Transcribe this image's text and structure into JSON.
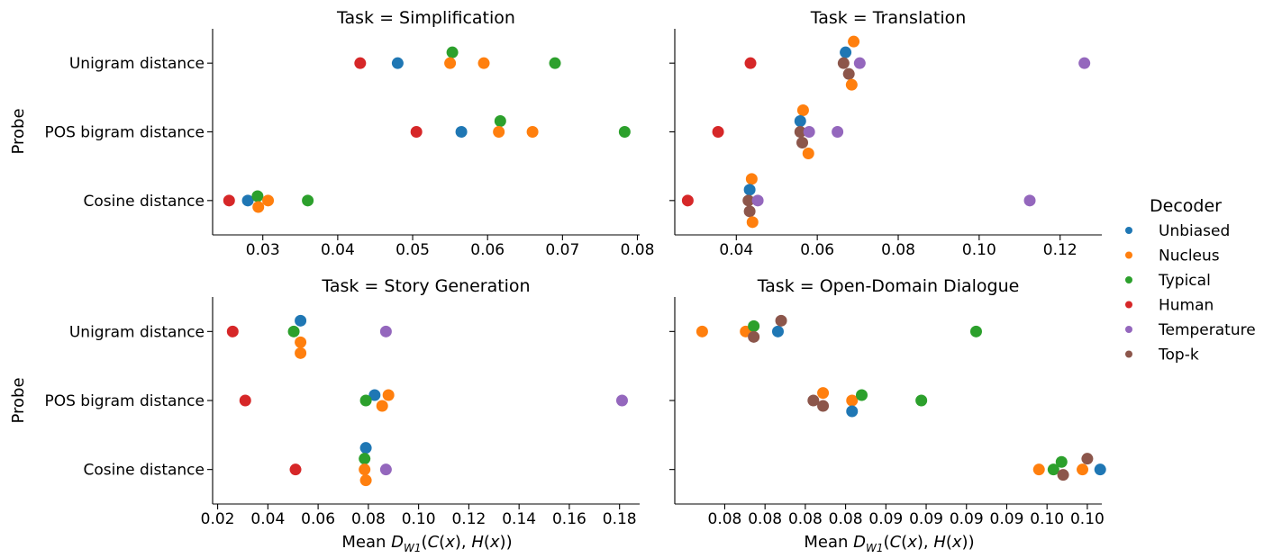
{
  "figure": {
    "y_axis_label": "Probe",
    "legend_title": "Decoder"
  },
  "decoders": [
    {
      "name": "Unbiased",
      "color": "#1f77b4"
    },
    {
      "name": "Nucleus",
      "color": "#ff7f0e"
    },
    {
      "name": "Typical",
      "color": "#2ca02c"
    },
    {
      "name": "Human",
      "color": "#d62728"
    },
    {
      "name": "Temperature",
      "color": "#9467bd"
    },
    {
      "name": "Top-k",
      "color": "#8c564b"
    }
  ],
  "chart_data": [
    {
      "type": "scatter",
      "title": "Task = Simplification",
      "xlabel": "",
      "ylabel": "Probe",
      "categories": [
        "Unigram distance",
        "POS bigram distance",
        "Cosine distance"
      ],
      "x_ticks": [
        0.03,
        0.04,
        0.05,
        0.06,
        0.07,
        0.08
      ],
      "x_tick_labels": [
        "0.03",
        "0.04",
        "0.05",
        "0.06",
        "0.07",
        "0.08"
      ],
      "xlim": [
        0.0233,
        0.0803
      ],
      "points": [
        {
          "decoder": "Human",
          "category": 0,
          "x": 0.043,
          "offset": 0
        },
        {
          "decoder": "Unbiased",
          "category": 0,
          "x": 0.048,
          "offset": 0
        },
        {
          "decoder": "Typical",
          "category": 0,
          "x": 0.0553,
          "offset": -1
        },
        {
          "decoder": "Nucleus",
          "category": 0,
          "x": 0.055,
          "offset": 0
        },
        {
          "decoder": "Nucleus",
          "category": 0,
          "x": 0.0595,
          "offset": 0
        },
        {
          "decoder": "Typical",
          "category": 0,
          "x": 0.069,
          "offset": 0
        },
        {
          "decoder": "Human",
          "category": 1,
          "x": 0.0505,
          "offset": 0
        },
        {
          "decoder": "Unbiased",
          "category": 1,
          "x": 0.0565,
          "offset": 0
        },
        {
          "decoder": "Typical",
          "category": 1,
          "x": 0.0617,
          "offset": -1
        },
        {
          "decoder": "Nucleus",
          "category": 1,
          "x": 0.0615,
          "offset": 0
        },
        {
          "decoder": "Nucleus",
          "category": 1,
          "x": 0.066,
          "offset": 0
        },
        {
          "decoder": "Typical",
          "category": 1,
          "x": 0.0783,
          "offset": 0
        },
        {
          "decoder": "Human",
          "category": 2,
          "x": 0.0255,
          "offset": 0
        },
        {
          "decoder": "Unbiased",
          "category": 2,
          "x": 0.028,
          "offset": 0
        },
        {
          "decoder": "Typical",
          "category": 2,
          "x": 0.0293,
          "offset": -0.4
        },
        {
          "decoder": "Nucleus",
          "category": 2,
          "x": 0.0307,
          "offset": 0
        },
        {
          "decoder": "Nucleus",
          "category": 2,
          "x": 0.0294,
          "offset": 0.6
        },
        {
          "decoder": "Typical",
          "category": 2,
          "x": 0.036,
          "offset": 0
        }
      ]
    },
    {
      "type": "scatter",
      "title": "Task = Translation",
      "xlabel": "",
      "ylabel": "",
      "categories": [
        "Unigram distance",
        "POS bigram distance",
        "Cosine distance"
      ],
      "x_ticks": [
        0.04,
        0.06,
        0.08,
        0.1,
        0.12
      ],
      "x_tick_labels": [
        "0.04",
        "0.06",
        "0.08",
        "0.10",
        "0.12"
      ],
      "xlim": [
        0.0248,
        0.1303
      ],
      "points": [
        {
          "decoder": "Human",
          "category": 0,
          "x": 0.0435,
          "offset": 0
        },
        {
          "decoder": "Nucleus",
          "category": 0,
          "x": 0.069,
          "offset": -2
        },
        {
          "decoder": "Unbiased",
          "category": 0,
          "x": 0.067,
          "offset": -1
        },
        {
          "decoder": "Top-k",
          "category": 0,
          "x": 0.0665,
          "offset": 0
        },
        {
          "decoder": "Temperature",
          "category": 0,
          "x": 0.0705,
          "offset": 0
        },
        {
          "decoder": "Top-k",
          "category": 0,
          "x": 0.0678,
          "offset": 1
        },
        {
          "decoder": "Nucleus",
          "category": 0,
          "x": 0.0685,
          "offset": 2
        },
        {
          "decoder": "Temperature",
          "category": 0,
          "x": 0.126,
          "offset": 0
        },
        {
          "decoder": "Human",
          "category": 1,
          "x": 0.0355,
          "offset": 0
        },
        {
          "decoder": "Nucleus",
          "category": 1,
          "x": 0.0565,
          "offset": -2
        },
        {
          "decoder": "Unbiased",
          "category": 1,
          "x": 0.0558,
          "offset": -1
        },
        {
          "decoder": "Top-k",
          "category": 1,
          "x": 0.0558,
          "offset": 0
        },
        {
          "decoder": "Temperature",
          "category": 1,
          "x": 0.058,
          "offset": 0
        },
        {
          "decoder": "Temperature",
          "category": 1,
          "x": 0.065,
          "offset": 0
        },
        {
          "decoder": "Top-k",
          "category": 1,
          "x": 0.0563,
          "offset": 1
        },
        {
          "decoder": "Nucleus",
          "category": 1,
          "x": 0.0578,
          "offset": 2
        },
        {
          "decoder": "Human",
          "category": 2,
          "x": 0.028,
          "offset": 0
        },
        {
          "decoder": "Nucleus",
          "category": 2,
          "x": 0.0438,
          "offset": -2
        },
        {
          "decoder": "Unbiased",
          "category": 2,
          "x": 0.0433,
          "offset": -1
        },
        {
          "decoder": "Top-k",
          "category": 2,
          "x": 0.043,
          "offset": 0
        },
        {
          "decoder": "Temperature",
          "category": 2,
          "x": 0.0453,
          "offset": 0
        },
        {
          "decoder": "Top-k",
          "category": 2,
          "x": 0.0433,
          "offset": 1
        },
        {
          "decoder": "Nucleus",
          "category": 2,
          "x": 0.044,
          "offset": 2
        },
        {
          "decoder": "Temperature",
          "category": 2,
          "x": 0.1125,
          "offset": 0
        }
      ]
    },
    {
      "type": "scatter",
      "title": "Task = Story Generation",
      "xlabel": "Mean D_W1(C(x), H(x))",
      "ylabel": "Probe",
      "categories": [
        "Unigram distance",
        "POS bigram distance",
        "Cosine distance"
      ],
      "x_ticks": [
        0.02,
        0.04,
        0.06,
        0.08,
        0.1,
        0.12,
        0.14,
        0.16,
        0.18
      ],
      "x_tick_labels": [
        "0.02",
        "0.04",
        "0.06",
        "0.08",
        "0.10",
        "0.12",
        "0.14",
        "0.16",
        "0.18"
      ],
      "xlim": [
        0.018,
        0.188
      ],
      "points": [
        {
          "decoder": "Human",
          "category": 0,
          "x": 0.026,
          "offset": 0
        },
        {
          "decoder": "Unbiased",
          "category": 0,
          "x": 0.053,
          "offset": -1
        },
        {
          "decoder": "Typical",
          "category": 0,
          "x": 0.0503,
          "offset": 0
        },
        {
          "decoder": "Nucleus",
          "category": 0,
          "x": 0.053,
          "offset": 1
        },
        {
          "decoder": "Nucleus",
          "category": 0,
          "x": 0.053,
          "offset": 2
        },
        {
          "decoder": "Temperature",
          "category": 0,
          "x": 0.087,
          "offset": 0
        },
        {
          "decoder": "Human",
          "category": 1,
          "x": 0.031,
          "offset": 0
        },
        {
          "decoder": "Unbiased",
          "category": 1,
          "x": 0.0825,
          "offset": -0.5
        },
        {
          "decoder": "Nucleus",
          "category": 1,
          "x": 0.088,
          "offset": -0.5
        },
        {
          "decoder": "Typical",
          "category": 1,
          "x": 0.079,
          "offset": 0
        },
        {
          "decoder": "Nucleus",
          "category": 1,
          "x": 0.0855,
          "offset": 0.5
        },
        {
          "decoder": "Temperature",
          "category": 1,
          "x": 0.181,
          "offset": 0
        },
        {
          "decoder": "Human",
          "category": 2,
          "x": 0.051,
          "offset": 0
        },
        {
          "decoder": "Unbiased",
          "category": 2,
          "x": 0.079,
          "offset": -2
        },
        {
          "decoder": "Typical",
          "category": 2,
          "x": 0.0785,
          "offset": -1
        },
        {
          "decoder": "Nucleus",
          "category": 2,
          "x": 0.0785,
          "offset": 0
        },
        {
          "decoder": "Temperature",
          "category": 2,
          "x": 0.087,
          "offset": 0
        },
        {
          "decoder": "Nucleus",
          "category": 2,
          "x": 0.079,
          "offset": 1
        }
      ]
    },
    {
      "type": "scatter",
      "title": "Task = Open-Domain Dialogue",
      "xlabel": "Mean D_W1(C(x), H(x))",
      "ylabel": "",
      "categories": [
        "Unigram distance",
        "POS bigram distance",
        "Cosine distance"
      ],
      "x_ticks": [
        0.0765,
        0.079,
        0.0815,
        0.084,
        0.0865,
        0.089,
        0.0915,
        0.094,
        0.0965,
        0.099
      ],
      "x_tick_labels": [
        "0.08",
        "0.08",
        "0.08",
        "0.08",
        "0.09",
        "0.09",
        "0.09",
        "0.09",
        "0.10",
        "0.10"
      ],
      "xlim": [
        0.0734,
        0.0999
      ],
      "points": [
        {
          "decoder": "Nucleus",
          "category": 0,
          "x": 0.0751,
          "offset": 0
        },
        {
          "decoder": "Nucleus",
          "category": 0,
          "x": 0.0778,
          "offset": 0
        },
        {
          "decoder": "Typical",
          "category": 0,
          "x": 0.0783,
          "offset": -0.5
        },
        {
          "decoder": "Top-k",
          "category": 0,
          "x": 0.0783,
          "offset": 0.5
        },
        {
          "decoder": "Unbiased",
          "category": 0,
          "x": 0.0798,
          "offset": 0
        },
        {
          "decoder": "Top-k",
          "category": 0,
          "x": 0.08,
          "offset": -1
        },
        {
          "decoder": "Typical",
          "category": 0,
          "x": 0.0921,
          "offset": 0
        },
        {
          "decoder": "Top-k",
          "category": 1,
          "x": 0.082,
          "offset": 0
        },
        {
          "decoder": "Nucleus",
          "category": 1,
          "x": 0.0826,
          "offset": -0.7
        },
        {
          "decoder": "Top-k",
          "category": 1,
          "x": 0.0826,
          "offset": 0.5
        },
        {
          "decoder": "Nucleus",
          "category": 1,
          "x": 0.0844,
          "offset": 0
        },
        {
          "decoder": "Typical",
          "category": 1,
          "x": 0.085,
          "offset": -0.5
        },
        {
          "decoder": "Unbiased",
          "category": 1,
          "x": 0.0844,
          "offset": 1
        },
        {
          "decoder": "Typical",
          "category": 1,
          "x": 0.0887,
          "offset": 0
        },
        {
          "decoder": "Nucleus",
          "category": 2,
          "x": 0.096,
          "offset": 0
        },
        {
          "decoder": "Typical",
          "category": 2,
          "x": 0.0969,
          "offset": 0
        },
        {
          "decoder": "Typical",
          "category": 2,
          "x": 0.0974,
          "offset": -0.7
        },
        {
          "decoder": "Top-k",
          "category": 2,
          "x": 0.0975,
          "offset": 0.5
        },
        {
          "decoder": "Nucleus",
          "category": 2,
          "x": 0.0987,
          "offset": 0
        },
        {
          "decoder": "Top-k",
          "category": 2,
          "x": 0.099,
          "offset": -1
        },
        {
          "decoder": "Unbiased",
          "category": 2,
          "x": 0.0998,
          "offset": 0
        }
      ]
    }
  ]
}
